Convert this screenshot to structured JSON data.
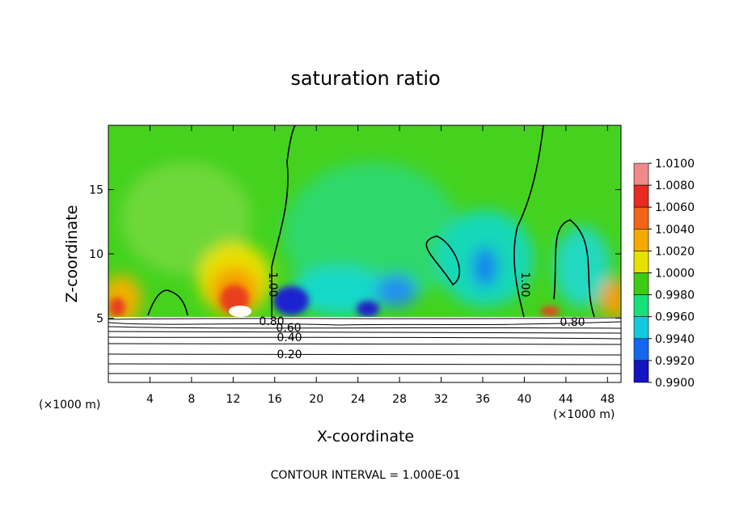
{
  "chart_data": {
    "type": "contour",
    "title": "saturation ratio",
    "x_label": "X-coordinate",
    "y_label": "Z-coordinate",
    "x_unit": "(×1000 m)",
    "x_unit_right": "(×1000 m)",
    "footer": "CONTOUR INTERVAL = 1.000E-01",
    "xlim": [
      0,
      49.3
    ],
    "ylim": [
      0,
      20
    ],
    "xticks": [
      4,
      8,
      12,
      16,
      20,
      24,
      28,
      32,
      36,
      40,
      44,
      48
    ],
    "yticks": [
      5,
      10,
      15
    ],
    "contour_labels": [
      "1.00",
      "1.00",
      "0.80",
      "0.60",
      "0.40",
      "0.20",
      "0.80"
    ],
    "colorbar": {
      "levels": [
        {
          "value": 1.01,
          "label": "1.0100"
        },
        {
          "value": 1.008,
          "label": "1.0080"
        },
        {
          "value": 1.006,
          "label": "1.0060"
        },
        {
          "value": 1.004,
          "label": "1.0040"
        },
        {
          "value": 1.002,
          "label": "1.0020"
        },
        {
          "value": 1.0,
          "label": "1.0000"
        },
        {
          "value": 0.998,
          "label": "0.9980"
        },
        {
          "value": 0.996,
          "label": "0.9960"
        },
        {
          "value": 0.994,
          "label": "0.9940"
        },
        {
          "value": 0.992,
          "label": "0.9920"
        },
        {
          "value": 0.99,
          "label": "0.9900"
        }
      ],
      "colors": [
        "#f08a8a",
        "#e82a20",
        "#f26418",
        "#f5a800",
        "#e6e000",
        "#3ccc14",
        "#18e07a",
        "#14c8e0",
        "#1468f0",
        "#1414c0"
      ]
    }
  }
}
